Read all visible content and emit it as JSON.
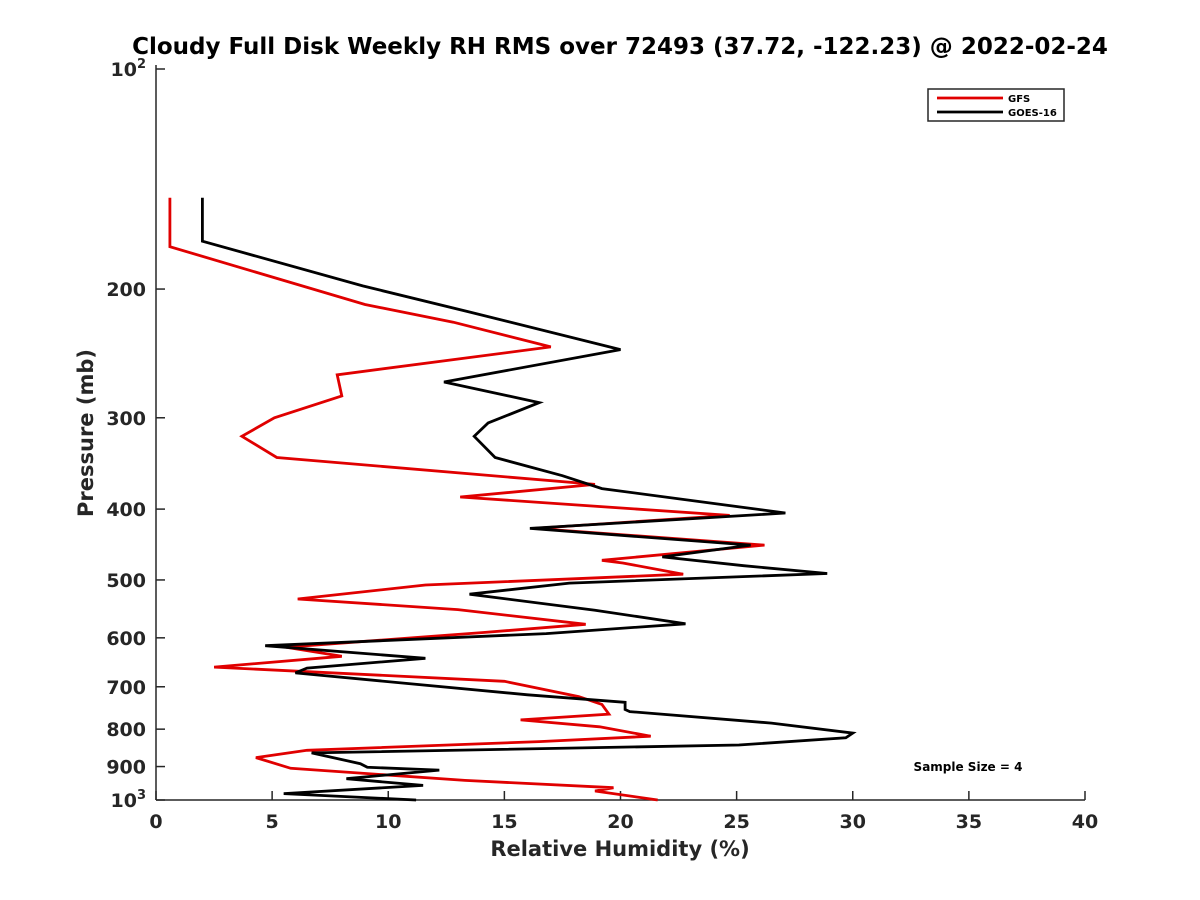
{
  "chart_data": {
    "type": "line",
    "title": "Cloudy Full Disk Weekly RH RMS over 72493 (37.72, -122.23) @ 2022-02-24",
    "xlabel": "Relative Humidity (%)",
    "ylabel": "Pressure (mb)",
    "xlim": [
      0,
      40
    ],
    "ylim": [
      100,
      1000
    ],
    "y_scale": "log",
    "y_reversed": true,
    "x_ticks": [
      "0",
      "5",
      "10",
      "15",
      "20",
      "25",
      "30",
      "35",
      "40"
    ],
    "y_ticks": [
      {
        "value": 100,
        "base": "10",
        "exp": "2"
      },
      {
        "value": 200,
        "label": "200"
      },
      {
        "value": 300,
        "label": "300"
      },
      {
        "value": 400,
        "label": "400"
      },
      {
        "value": 500,
        "label": "500"
      },
      {
        "value": 600,
        "label": "600"
      },
      {
        "value": 700,
        "label": "700"
      },
      {
        "value": 800,
        "label": "800"
      },
      {
        "value": 900,
        "label": "900"
      },
      {
        "value": 1000,
        "base": "10",
        "exp": "3"
      }
    ],
    "grid": false,
    "legend_position": "top-right",
    "series": [
      {
        "name": "GFS",
        "color": "#e00000",
        "points": [
          [
            0.6,
            150
          ],
          [
            0.6,
            175
          ],
          [
            9,
            210
          ],
          [
            12.8,
            222
          ],
          [
            17,
            240
          ],
          [
            7.8,
            262
          ],
          [
            8,
            280
          ],
          [
            5.1,
            300
          ],
          [
            3.7,
            318
          ],
          [
            5.2,
            340
          ],
          [
            18.9,
            370
          ],
          [
            13.1,
            385
          ],
          [
            24.7,
            408
          ],
          [
            16.3,
            425
          ],
          [
            26.2,
            448
          ],
          [
            19.2,
            470
          ],
          [
            20.1,
            474
          ],
          [
            22.7,
            491
          ],
          [
            11.6,
            508
          ],
          [
            6.1,
            531
          ],
          [
            13,
            549
          ],
          [
            18.5,
            575
          ],
          [
            14.1,
            590
          ],
          [
            5.6,
            618
          ],
          [
            8,
            636
          ],
          [
            2.5,
            658
          ],
          [
            15,
            688
          ],
          [
            18.2,
            722
          ],
          [
            19.2,
            740
          ],
          [
            19.5,
            763
          ],
          [
            15.7,
            777
          ],
          [
            19.1,
            794
          ],
          [
            21.3,
            818
          ],
          [
            16.5,
            832
          ],
          [
            6.5,
            855
          ],
          [
            4.3,
            875
          ],
          [
            5.8,
            905
          ],
          [
            13.3,
            940
          ],
          [
            19.7,
            962
          ],
          [
            18.9,
            972
          ],
          [
            21.6,
            1000
          ]
        ]
      },
      {
        "name": "GOES-16",
        "color": "#000000",
        "points": [
          [
            2,
            150
          ],
          [
            2,
            172
          ],
          [
            8.9,
            198
          ],
          [
            13.5,
            215
          ],
          [
            20,
            242
          ],
          [
            12.4,
            268
          ],
          [
            16.5,
            286
          ],
          [
            14.3,
            305
          ],
          [
            13.7,
            318
          ],
          [
            14.6,
            340
          ],
          [
            17.5,
            360
          ],
          [
            19.2,
            375
          ],
          [
            27.1,
            405
          ],
          [
            16.1,
            425
          ],
          [
            25.6,
            448
          ],
          [
            21.8,
            465
          ],
          [
            25.3,
            478
          ],
          [
            28.9,
            490
          ],
          [
            17.8,
            505
          ],
          [
            13.5,
            523
          ],
          [
            18.9,
            550
          ],
          [
            22.8,
            574
          ],
          [
            16.8,
            592
          ],
          [
            4.7,
            615
          ],
          [
            11.6,
            640
          ],
          [
            6.5,
            660
          ],
          [
            6,
            670
          ],
          [
            16,
            718
          ],
          [
            20.2,
            735
          ],
          [
            20.2,
            752
          ],
          [
            20.4,
            757
          ],
          [
            26.5,
            785
          ],
          [
            30,
            810
          ],
          [
            29.7,
            822
          ],
          [
            25.1,
            841
          ],
          [
            6.7,
            862
          ],
          [
            8.8,
            892
          ],
          [
            9.1,
            902
          ],
          [
            12.2,
            910
          ],
          [
            8.2,
            935
          ],
          [
            11.5,
            955
          ],
          [
            5.5,
            980
          ],
          [
            11.2,
            1000
          ]
        ]
      }
    ],
    "annotation": "Sample Size = 4"
  }
}
